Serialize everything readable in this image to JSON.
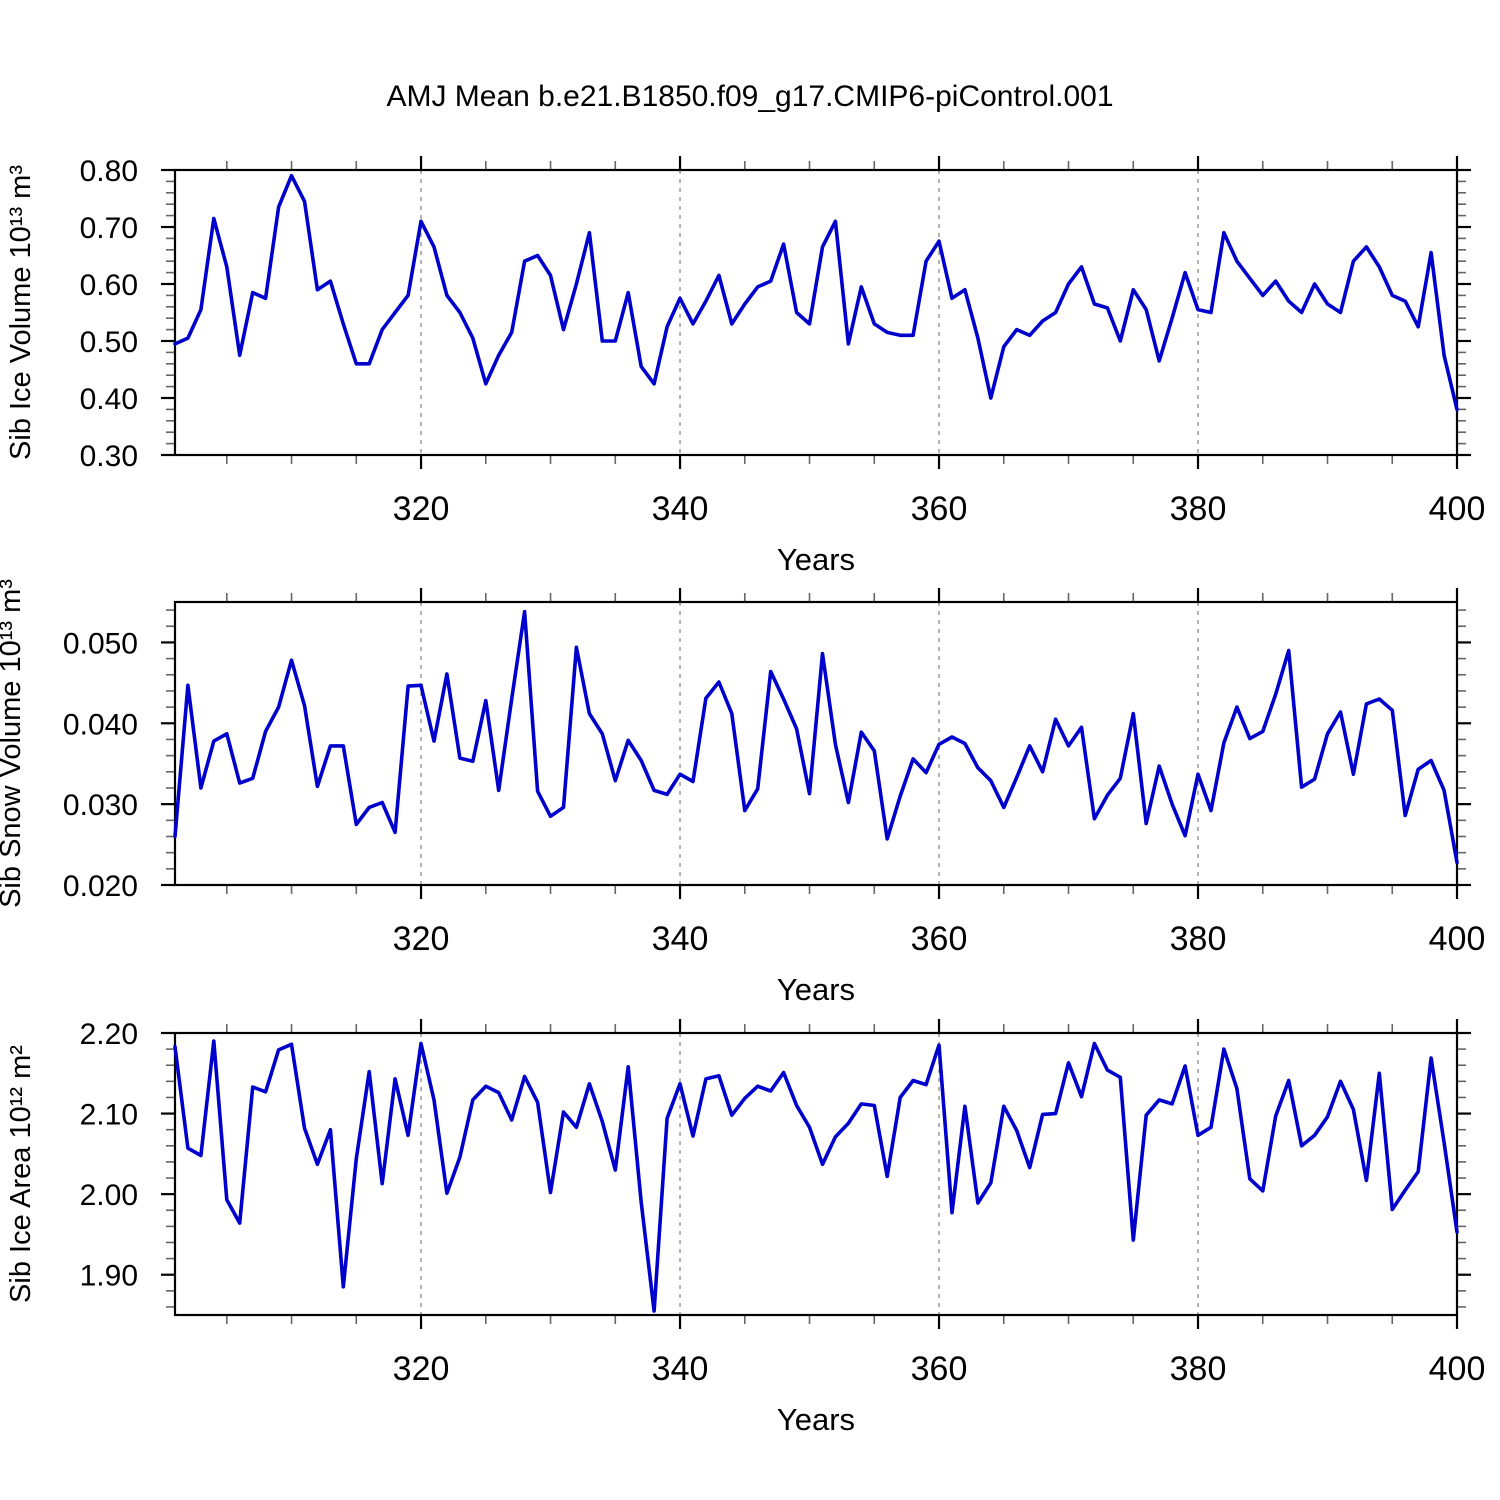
{
  "title": "AMJ Mean b.e21.B1850.f09_g17.CMIP6-piControl.001",
  "style": {
    "line_color": "#0000cd",
    "grid_color": "#8a8a8a",
    "axis_color": "#000000",
    "minor_tick_color": "#666666"
  },
  "chart_data": [
    {
      "type": "line",
      "title": "AMJ Mean b.e21.B1850.f09_g17.CMIP6-piControl.001",
      "ylabel": "Sib Ice Volume 10¹³ m³",
      "xlabel": "Years",
      "legend": "none",
      "grid": "vertical-dashed",
      "x_start": 301,
      "x_end": 400,
      "ylim": [
        0.3,
        0.8
      ],
      "yticks": [
        "0.30",
        "0.40",
        "0.50",
        "0.60",
        "0.70",
        "0.80"
      ],
      "y_minor_step": 0.02,
      "xticks": [
        320,
        340,
        360,
        380,
        400
      ],
      "x_minor_step": 5,
      "x_gridlines": [
        320,
        340,
        360,
        380
      ],
      "values": [
        0.495,
        0.505,
        0.555,
        0.715,
        0.63,
        0.475,
        0.585,
        0.575,
        0.735,
        0.79,
        0.745,
        0.59,
        0.605,
        0.53,
        0.46,
        0.46,
        0.52,
        0.55,
        0.58,
        0.71,
        0.665,
        0.58,
        0.55,
        0.505,
        0.425,
        0.475,
        0.515,
        0.64,
        0.65,
        0.615,
        0.52,
        0.6,
        0.69,
        0.5,
        0.5,
        0.585,
        0.455,
        0.425,
        0.525,
        0.575,
        0.53,
        0.57,
        0.615,
        0.53,
        0.565,
        0.595,
        0.605,
        0.67,
        0.55,
        0.53,
        0.665,
        0.71,
        0.495,
        0.595,
        0.53,
        0.515,
        0.51,
        0.51,
        0.64,
        0.675,
        0.575,
        0.59,
        0.505,
        0.4,
        0.49,
        0.52,
        0.51,
        0.535,
        0.55,
        0.6,
        0.63,
        0.565,
        0.558,
        0.5,
        0.59,
        0.555,
        0.465,
        0.54,
        0.62,
        0.555,
        0.55,
        0.69,
        0.64,
        0.61,
        0.58,
        0.605,
        0.57,
        0.55,
        0.6,
        0.565,
        0.55,
        0.64,
        0.665,
        0.63,
        0.58,
        0.57,
        0.525,
        0.655,
        0.475,
        0.38
      ]
    },
    {
      "type": "line",
      "title": "",
      "ylabel": "Sib Snow Volume 10¹³ m³",
      "xlabel": "Years",
      "legend": "none",
      "grid": "vertical-dashed",
      "x_start": 301,
      "x_end": 400,
      "ylim": [
        0.02,
        0.055
      ],
      "yticks": [
        "0.020",
        "0.030",
        "0.040",
        "0.050"
      ],
      "y_minor_step": 0.002,
      "xticks": [
        320,
        340,
        360,
        380,
        400
      ],
      "x_minor_step": 5,
      "x_gridlines": [
        320,
        340,
        360,
        380
      ],
      "values": [
        0.026,
        0.0447,
        0.032,
        0.0378,
        0.0387,
        0.0326,
        0.0332,
        0.039,
        0.042,
        0.0478,
        0.0422,
        0.0322,
        0.0372,
        0.0372,
        0.0275,
        0.0296,
        0.0302,
        0.0265,
        0.0446,
        0.0447,
        0.0378,
        0.0461,
        0.0357,
        0.0353,
        0.0428,
        0.0317,
        0.043,
        0.0538,
        0.0316,
        0.0285,
        0.0296,
        0.0494,
        0.0412,
        0.0387,
        0.0329,
        0.0379,
        0.0354,
        0.0317,
        0.0312,
        0.0337,
        0.0328,
        0.0431,
        0.0451,
        0.0412,
        0.0292,
        0.0319,
        0.0464,
        0.043,
        0.0393,
        0.0313,
        0.0486,
        0.0374,
        0.0302,
        0.0389,
        0.0366,
        0.0257,
        0.031,
        0.0356,
        0.0339,
        0.0374,
        0.0383,
        0.0375,
        0.0345,
        0.0329,
        0.0296,
        0.0333,
        0.0372,
        0.034,
        0.0405,
        0.0372,
        0.0395,
        0.0282,
        0.0311,
        0.0332,
        0.0412,
        0.0276,
        0.0347,
        0.03,
        0.0261,
        0.0337,
        0.0292,
        0.0376,
        0.042,
        0.0381,
        0.039,
        0.0436,
        0.049,
        0.0321,
        0.0331,
        0.0387,
        0.0414,
        0.0337,
        0.0424,
        0.043,
        0.0416,
        0.0286,
        0.0343,
        0.0354,
        0.0317,
        0.0228
      ]
    },
    {
      "type": "line",
      "title": "",
      "ylabel": "Sib Ice Area 10¹² m²",
      "xlabel": "Years",
      "legend": "none",
      "grid": "vertical-dashed",
      "x_start": 301,
      "x_end": 400,
      "ylim": [
        1.85,
        2.2
      ],
      "yticks": [
        "1.90",
        "2.00",
        "2.10",
        "2.20"
      ],
      "y_minor_step": 0.02,
      "xticks": [
        320,
        340,
        360,
        380,
        400
      ],
      "x_minor_step": 5,
      "x_gridlines": [
        320,
        340,
        360,
        380
      ],
      "values": [
        2.183,
        2.057,
        2.048,
        2.19,
        1.993,
        1.964,
        2.133,
        2.127,
        2.179,
        2.186,
        2.082,
        2.037,
        2.08,
        1.885,
        2.044,
        2.152,
        2.013,
        2.143,
        2.073,
        2.187,
        2.117,
        2.001,
        2.046,
        2.117,
        2.134,
        2.126,
        2.092,
        2.146,
        2.114,
        2.002,
        2.102,
        2.083,
        2.137,
        2.09,
        2.03,
        2.158,
        1.99,
        1.855,
        2.094,
        2.137,
        2.072,
        2.143,
        2.147,
        2.098,
        2.119,
        2.134,
        2.128,
        2.151,
        2.11,
        2.083,
        2.037,
        2.071,
        2.088,
        2.112,
        2.11,
        2.022,
        2.12,
        2.141,
        2.136,
        2.185,
        1.977,
        2.109,
        1.989,
        2.014,
        2.109,
        2.079,
        2.033,
        2.099,
        2.1,
        2.163,
        2.121,
        2.187,
        2.154,
        2.145,
        1.943,
        2.098,
        2.117,
        2.112,
        2.159,
        2.073,
        2.083,
        2.18,
        2.131,
        2.019,
        2.004,
        2.097,
        2.141,
        2.06,
        2.073,
        2.096,
        2.14,
        2.105,
        2.017,
        2.15,
        1.981,
        2.005,
        2.028,
        2.169,
        2.064,
        1.953
      ]
    }
  ]
}
